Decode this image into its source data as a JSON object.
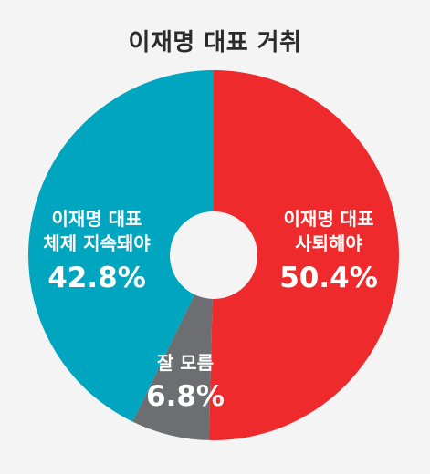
{
  "chart_data": {
    "type": "pie",
    "title": "이재명 대표 거취",
    "donut": true,
    "slices": [
      {
        "label": [
          "이재명 대표",
          "사퇴해야"
        ],
        "value": 50.4,
        "display": "50.4%",
        "color": "#ee2a2c"
      },
      {
        "label": [
          "잘 모름"
        ],
        "value": 6.8,
        "display": "6.8%",
        "color": "#6d6e71"
      },
      {
        "label": [
          "이재명 대표",
          "체제 지속돼야"
        ],
        "value": 42.8,
        "display": "42.8%",
        "color": "#00a6c0"
      }
    ],
    "start": "12 o'clock",
    "direction": "clockwise"
  }
}
